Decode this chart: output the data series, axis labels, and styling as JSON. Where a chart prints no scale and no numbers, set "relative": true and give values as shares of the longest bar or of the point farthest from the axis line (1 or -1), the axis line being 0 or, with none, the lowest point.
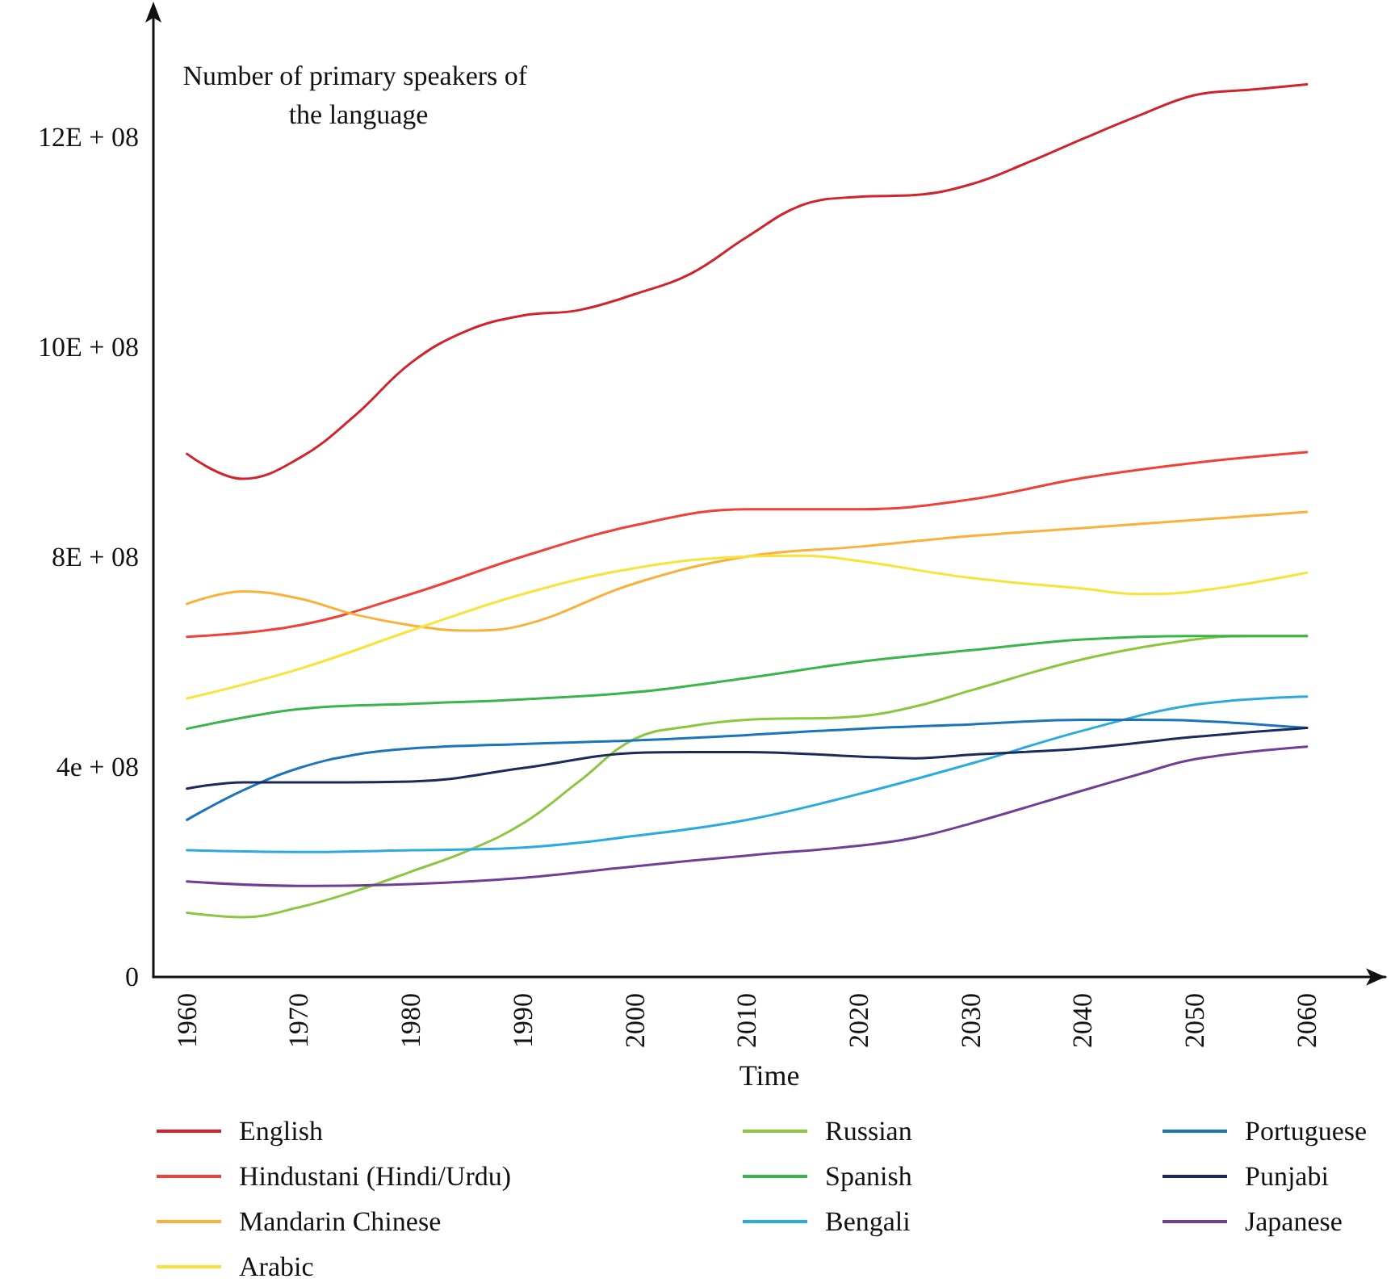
{
  "chart_data": {
    "type": "line",
    "xlabel": "Time",
    "ylabel": "Number of primary speakers of the language",
    "relative": true,
    "annotations": [
      "0",
      "4e + 08",
      "8E + 08",
      "10E + 08",
      "12E + 08"
    ],
    "xlim": [
      1957,
      2067
    ],
    "xticks": [
      1960,
      1970,
      1980,
      1990,
      2000,
      2010,
      2020,
      2030,
      2040,
      2050,
      2060
    ],
    "grid": false,
    "legend": "bottom",
    "marker": "none",
    "line_style": "solid",
    "series": [
      {
        "name": "English",
        "color": "#d2232a",
        "x": [
          1960,
          1965,
          1970,
          1975,
          1980,
          1985,
          1990,
          1995,
          2000,
          2005,
          2010,
          2015,
          2020,
          2025,
          2030,
          2035,
          2040,
          2045,
          2050,
          2055,
          2060
        ],
        "values": [
          0.586,
          0.558,
          0.581,
          0.629,
          0.688,
          0.724,
          0.741,
          0.747,
          0.765,
          0.788,
          0.829,
          0.865,
          0.874,
          0.876,
          0.888,
          0.912,
          0.939,
          0.965,
          0.988,
          0.994,
          1
        ]
      },
      {
        "name": "Hindustani (Hindi/Urdu)",
        "color": "#ef4136",
        "x": [
          1960,
          1970,
          1980,
          1990,
          2000,
          2010,
          2020,
          2030,
          2040,
          2050,
          2060
        ],
        "values": [
          0.381,
          0.394,
          0.429,
          0.471,
          0.506,
          0.524,
          0.524,
          0.535,
          0.559,
          0.576,
          0.588
        ]
      },
      {
        "name": "Mandarin Chinese",
        "color": "#fbb03b",
        "x": [
          1960,
          1965,
          1970,
          1975,
          1980,
          1985,
          1990,
          2000,
          2010,
          2020,
          2030,
          2040,
          2050,
          2060
        ],
        "values": [
          0.418,
          0.432,
          0.424,
          0.406,
          0.394,
          0.388,
          0.394,
          0.441,
          0.471,
          0.482,
          0.494,
          0.503,
          0.512,
          0.521
        ]
      },
      {
        "name": "Arabic",
        "color": "#f7e43a",
        "x": [
          1960,
          1970,
          1980,
          1990,
          2000,
          2010,
          2015,
          2020,
          2030,
          2040,
          2045,
          2050,
          2060
        ],
        "values": [
          0.312,
          0.345,
          0.388,
          0.429,
          0.458,
          0.471,
          0.472,
          0.466,
          0.447,
          0.435,
          0.429,
          0.432,
          0.453
        ]
      },
      {
        "name": "Russian",
        "color": "#8cc63f",
        "x": [
          1960,
          1965,
          1970,
          1975,
          1980,
          1985,
          1990,
          1995,
          2000,
          2005,
          2010,
          2020,
          2025,
          2030,
          2040,
          2050,
          2055,
          2060
        ],
        "values": [
          0.072,
          0.067,
          0.078,
          0.096,
          0.118,
          0.141,
          0.172,
          0.219,
          0.267,
          0.281,
          0.288,
          0.292,
          0.303,
          0.321,
          0.356,
          0.378,
          0.382,
          0.382
        ]
      },
      {
        "name": "Spanish",
        "color": "#39b54a",
        "x": [
          1960,
          1970,
          1980,
          1990,
          2000,
          2010,
          2020,
          2030,
          2040,
          2050,
          2060
        ],
        "values": [
          0.278,
          0.3,
          0.306,
          0.311,
          0.319,
          0.335,
          0.353,
          0.366,
          0.378,
          0.382,
          0.382
        ]
      },
      {
        "name": "Bengali",
        "color": "#29abe2",
        "x": [
          1960,
          1970,
          1980,
          1990,
          2000,
          2010,
          2020,
          2030,
          2040,
          2050,
          2060
        ],
        "values": [
          0.142,
          0.14,
          0.142,
          0.145,
          0.158,
          0.176,
          0.205,
          0.239,
          0.276,
          0.305,
          0.314
        ]
      },
      {
        "name": "Portuguese",
        "color": "#1c75bc",
        "x": [
          1960,
          1965,
          1970,
          1975,
          1980,
          1990,
          2000,
          2010,
          2020,
          2030,
          2040,
          2045,
          2050,
          2060
        ],
        "values": [
          0.176,
          0.209,
          0.234,
          0.249,
          0.256,
          0.261,
          0.265,
          0.271,
          0.278,
          0.283,
          0.288,
          0.288,
          0.287,
          0.279
        ]
      },
      {
        "name": "Punjabi",
        "color": "#1b2a5c",
        "x": [
          1960,
          1965,
          1970,
          1980,
          1990,
          2000,
          2005,
          2010,
          2020,
          2025,
          2030,
          2040,
          2050,
          2060
        ],
        "values": [
          0.211,
          0.218,
          0.218,
          0.219,
          0.234,
          0.251,
          0.252,
          0.252,
          0.247,
          0.245,
          0.249,
          0.256,
          0.269,
          0.279
        ]
      },
      {
        "name": "Japanese",
        "color": "#6f3f98",
        "x": [
          1960,
          1970,
          1980,
          1990,
          2000,
          2010,
          2020,
          2025,
          2030,
          2040,
          2045,
          2050,
          2060
        ],
        "values": [
          0.107,
          0.102,
          0.104,
          0.111,
          0.124,
          0.136,
          0.147,
          0.156,
          0.172,
          0.209,
          0.227,
          0.244,
          0.258
        ]
      }
    ]
  }
}
